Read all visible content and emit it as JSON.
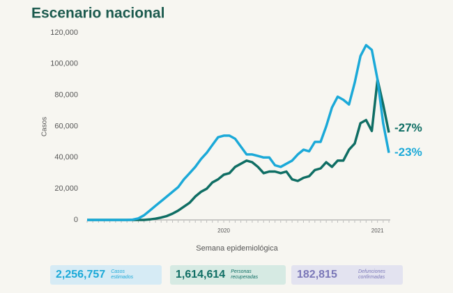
{
  "chart_data": {
    "type": "line",
    "title": "Escenario nacional",
    "y_label": "Casos",
    "x_label": "Semana epidemiológica",
    "categories": [
      null,
      null,
      null,
      null,
      null,
      null,
      null,
      null,
      null,
      null,
      null,
      null,
      null,
      null,
      null,
      null,
      null,
      null,
      null,
      null,
      null,
      null,
      null,
      null,
      "2020",
      null,
      null,
      null,
      null,
      null,
      null,
      null,
      null,
      null,
      null,
      null,
      null,
      null,
      null,
      null,
      null,
      null,
      null,
      null,
      null,
      null,
      null,
      null,
      null,
      null,
      null,
      "2021",
      null,
      null
    ],
    "series": [
      {
        "color": "#0f6e64",
        "values": [
          0,
          0,
          0,
          0,
          0,
          0,
          0,
          0,
          0,
          0,
          0,
          300,
          800,
          1500,
          2500,
          4000,
          6000,
          8500,
          11000,
          15000,
          18000,
          20000,
          24000,
          26000,
          29000,
          30000,
          34000,
          36000,
          38000,
          37000,
          34000,
          30000,
          31000,
          31000,
          30000,
          31000,
          26000,
          25000,
          27000,
          28000,
          32000,
          33000,
          37000,
          34000,
          38000,
          38000,
          45000,
          49000,
          62000,
          64000,
          57000,
          90000,
          74000,
          56000
        ]
      },
      {
        "color": "#1ba9d8",
        "values": [
          0,
          0,
          0,
          0,
          0,
          0,
          0,
          0,
          200,
          1000,
          3000,
          6000,
          9000,
          12000,
          15000,
          18000,
          21000,
          26000,
          30000,
          34000,
          39000,
          43000,
          48000,
          53000,
          54000,
          54000,
          52000,
          47000,
          42000,
          42000,
          41000,
          40000,
          40000,
          35000,
          34000,
          36000,
          38000,
          42000,
          45000,
          44000,
          50000,
          50000,
          60000,
          72000,
          79000,
          77000,
          74000,
          88000,
          105000,
          112000,
          109000,
          90000,
          62000,
          43000
        ]
      }
    ],
    "annotations": [
      "-27%",
      "-23%"
    ],
    "ylim": [
      0,
      120000
    ],
    "yticks": [
      0,
      {
        "value": 20000,
        "label": "20,000"
      },
      {
        "value": 40000,
        "label": "40,000"
      },
      {
        "value": 60000,
        "label": "60,000"
      },
      {
        "value": 80000,
        "label": "80,000"
      },
      {
        "value": 100000,
        "label": "100,000"
      },
      {
        "value": 120000,
        "label": "120,000"
      }
    ],
    "grid": false
  },
  "stats": [
    {
      "value": "2,256,757",
      "label": [
        "Casos",
        "estimados"
      ]
    },
    {
      "value": "1,614,614",
      "label": [
        "Personas",
        "recuperadas"
      ]
    },
    {
      "value": "182,815",
      "label": [
        "Defunciones",
        "confirmadas"
      ]
    }
  ]
}
